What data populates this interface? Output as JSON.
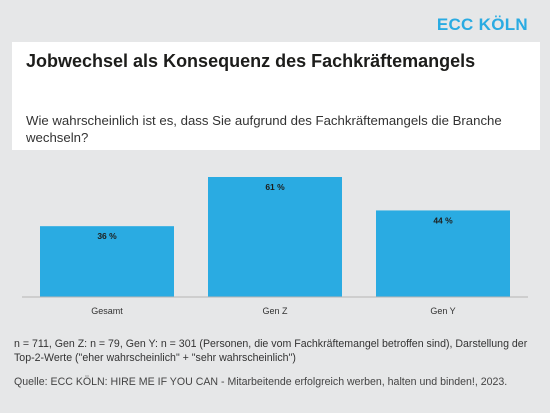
{
  "brand": {
    "logo_text": "ECC KÖLN",
    "accent_color": "#2aabe2"
  },
  "header": {
    "title": "Jobwechsel als Konsequenz des Fachkräftemangels",
    "subtitle": "Wie wahrscheinlich ist es, dass Sie aufgrund des Fachkräftemangels die Branche wechseln?"
  },
  "footer": {
    "note": "n = 711, Gen Z: n = 79, Gen Y: n = 301 (Personen, die vom Fachkräftemangel betroffen sind), Darstellung der Top-2-Werte (\"eher wahrscheinlich\" + \"sehr wahrscheinlich\")",
    "source": "Quelle: ECC KÖLN: HIRE ME IF YOU CAN - Mitarbeitende erfolgreich werben, halten und binden!, 2023."
  },
  "chart_data": {
    "type": "bar",
    "categories": [
      "Gesamt",
      "Gen Z",
      "Gen Y"
    ],
    "values": [
      36,
      61,
      44
    ],
    "data_labels": [
      "36 %",
      "61 %",
      "44 %"
    ],
    "unit": "%",
    "ylim": [
      0,
      61
    ],
    "bar_color": "#2aabe2",
    "grid": false,
    "legend": "none"
  }
}
